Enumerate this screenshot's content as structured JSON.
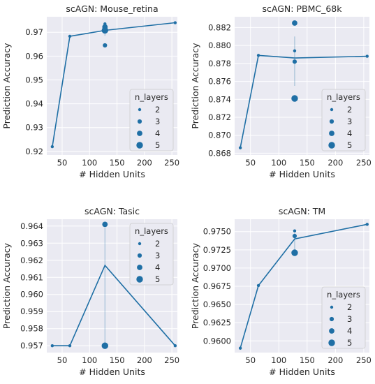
{
  "colors": {
    "line": "#1f6fa5",
    "marker": "#1f6fa5",
    "panel_bg": "#eaeaf2",
    "grid": "#ffffff",
    "legend_bg": "#eaeaf2"
  },
  "chart_data": [
    {
      "type": "line",
      "title": "scAGN: Mouse_retina",
      "xlabel": "# Hidden Units",
      "ylabel": "Prediction Accuracy",
      "xlim": [
        22,
        260
      ],
      "ylim": [
        0.9185,
        0.9765
      ],
      "xticks": [
        50,
        100,
        150,
        200,
        250
      ],
      "yticks": [
        0.92,
        0.93,
        0.94,
        0.95,
        0.96,
        0.97
      ],
      "ytick_labels": [
        "0.92",
        "0.93",
        "0.94",
        "0.95",
        "0.96",
        "0.97"
      ],
      "line": {
        "x": [
          32,
          64,
          128,
          256
        ],
        "y": [
          0.922,
          0.9683,
          0.9708,
          0.974
        ]
      },
      "error_bars": [
        {
          "x": 128,
          "low": 0.9685,
          "high": 0.9732
        }
      ],
      "scatter": [
        {
          "x": 32,
          "y": 0.922,
          "n_layers": 2
        },
        {
          "x": 64,
          "y": 0.9683,
          "n_layers": 2
        },
        {
          "x": 128,
          "y": 0.9735,
          "n_layers": 2
        },
        {
          "x": 128,
          "y": 0.9722,
          "n_layers": 4
        },
        {
          "x": 128,
          "y": 0.9708,
          "n_layers": 5
        },
        {
          "x": 128,
          "y": 0.9645,
          "n_layers": 3
        },
        {
          "x": 256,
          "y": 0.974,
          "n_layers": 2
        }
      ],
      "legend": {
        "title": "n_layers",
        "entries": [
          "2",
          "3",
          "4",
          "5"
        ],
        "placement": "lower-right"
      }
    },
    {
      "type": "line",
      "title": "scAGN: PBMC_68k",
      "xlabel": "# Hidden Units",
      "ylabel": "Prediction Accuracy",
      "xlim": [
        22,
        260
      ],
      "ylim": [
        0.8678,
        0.8832
      ],
      "xticks": [
        50,
        100,
        150,
        200,
        250
      ],
      "yticks": [
        0.868,
        0.87,
        0.872,
        0.874,
        0.876,
        0.878,
        0.88,
        0.882
      ],
      "ytick_labels": [
        "0.868",
        "0.870",
        "0.872",
        "0.874",
        "0.876",
        "0.878",
        "0.880",
        "0.882"
      ],
      "line": {
        "x": [
          32,
          64,
          128,
          256
        ],
        "y": [
          0.8686,
          0.8789,
          0.8786,
          0.8788
        ]
      },
      "error_bars": [
        {
          "x": 128,
          "low": 0.8755,
          "high": 0.881
        }
      ],
      "scatter": [
        {
          "x": 32,
          "y": 0.8686,
          "n_layers": 2
        },
        {
          "x": 64,
          "y": 0.8789,
          "n_layers": 2
        },
        {
          "x": 128,
          "y": 0.8825,
          "n_layers": 4
        },
        {
          "x": 128,
          "y": 0.8794,
          "n_layers": 2
        },
        {
          "x": 128,
          "y": 0.8782,
          "n_layers": 3
        },
        {
          "x": 128,
          "y": 0.8741,
          "n_layers": 5
        },
        {
          "x": 256,
          "y": 0.8788,
          "n_layers": 2
        }
      ],
      "legend": {
        "title": "n_layers",
        "entries": [
          "2",
          "3",
          "4",
          "5"
        ],
        "placement": "lower-right"
      }
    },
    {
      "type": "line",
      "title": "scAGN: Tasic",
      "xlabel": "# Hidden Units",
      "ylabel": "Prediction Accuracy",
      "xlim": [
        22,
        260
      ],
      "ylim": [
        0.9566,
        0.9644
      ],
      "xticks": [
        50,
        100,
        150,
        200,
        250
      ],
      "yticks": [
        0.957,
        0.958,
        0.959,
        0.96,
        0.961,
        0.962,
        0.963,
        0.964
      ],
      "ytick_labels": [
        "0.957",
        "0.958",
        "0.959",
        "0.960",
        "0.961",
        "0.962",
        "0.963",
        "0.964"
      ],
      "line": {
        "x": [
          32,
          64,
          128,
          256
        ],
        "y": [
          0.957,
          0.957,
          0.9617,
          0.957
        ]
      },
      "error_bars": [
        {
          "x": 128,
          "low": 0.9571,
          "high": 0.9639
        }
      ],
      "scatter": [
        {
          "x": 32,
          "y": 0.957,
          "n_layers": 2
        },
        {
          "x": 64,
          "y": 0.957,
          "n_layers": 2
        },
        {
          "x": 128,
          "y": 0.9641,
          "n_layers": 4
        },
        {
          "x": 128,
          "y": 0.957,
          "n_layers": 5
        },
        {
          "x": 256,
          "y": 0.957,
          "n_layers": 2
        }
      ],
      "legend": {
        "title": "n_layers",
        "entries": [
          "2",
          "3",
          "4",
          "5"
        ],
        "placement": "upper-right"
      }
    },
    {
      "type": "line",
      "title": "scAGN: TM",
      "xlabel": "# Hidden Units",
      "ylabel": "Prediction Accuracy",
      "xlim": [
        22,
        260
      ],
      "ylim": [
        0.9584,
        0.9767
      ],
      "xticks": [
        50,
        100,
        150,
        200,
        250
      ],
      "yticks": [
        0.96,
        0.9625,
        0.965,
        0.9675,
        0.97,
        0.9725,
        0.975
      ],
      "ytick_labels": [
        "0.9600",
        "0.9625",
        "0.9650",
        "0.9675",
        "0.9700",
        "0.9725",
        "0.9750"
      ],
      "line": {
        "x": [
          32,
          64,
          128,
          256
        ],
        "y": [
          0.959,
          0.9676,
          0.974,
          0.976
        ]
      },
      "error_bars": [
        {
          "x": 128,
          "low": 0.9725,
          "high": 0.9748
        }
      ],
      "scatter": [
        {
          "x": 32,
          "y": 0.959,
          "n_layers": 2
        },
        {
          "x": 64,
          "y": 0.9676,
          "n_layers": 2
        },
        {
          "x": 128,
          "y": 0.9751,
          "n_layers": 2
        },
        {
          "x": 128,
          "y": 0.9744,
          "n_layers": 3
        },
        {
          "x": 128,
          "y": 0.9721,
          "n_layers": 5
        },
        {
          "x": 256,
          "y": 0.976,
          "n_layers": 2
        }
      ],
      "legend": {
        "title": "n_layers",
        "entries": [
          "2",
          "3",
          "4",
          "5"
        ],
        "placement": "lower-right"
      }
    }
  ]
}
